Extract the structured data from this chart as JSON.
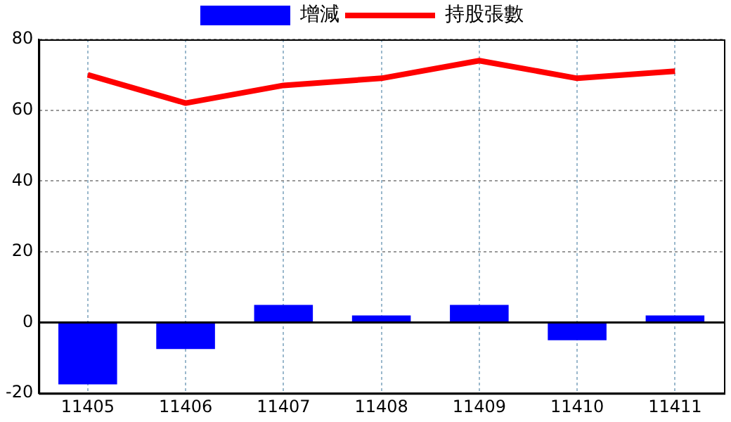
{
  "chart_data": {
    "type": "bar",
    "categories": [
      "11405",
      "11406",
      "11407",
      "11408",
      "11409",
      "11410",
      "11411"
    ],
    "series": [
      {
        "name": "增減",
        "color": "#0000ff",
        "values": [
          -17.5,
          -7.5,
          5,
          2,
          5,
          -5,
          2
        ]
      },
      {
        "name": "持股張數",
        "type": "line",
        "color": "#ff0000",
        "values": [
          70,
          62,
          67,
          69,
          74,
          69,
          71
        ]
      }
    ],
    "ylim": [
      -20,
      80
    ],
    "yticks": [
      -20,
      0,
      20,
      40,
      60,
      80
    ],
    "grid": true,
    "legend": "top",
    "marker": "none"
  }
}
